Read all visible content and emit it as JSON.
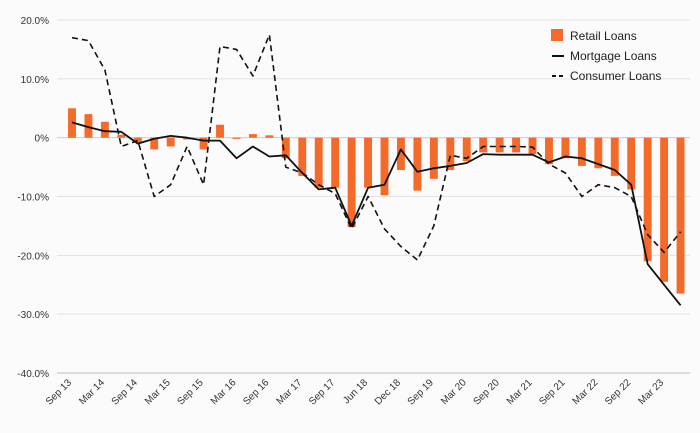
{
  "chart_data": {
    "type": "bar+line",
    "x_tick_labels": [
      "Sep 13",
      "Mar 14",
      "Sep 14",
      "Mar 15",
      "Sep 15",
      "Mar 16",
      "Sep 16",
      "Mar 17",
      "Sep 17",
      "Jun 18",
      "Dec 18",
      "Sep 19",
      "Mar 20",
      "Sep 20",
      "Mar 21",
      "Sep 21",
      "Mar 22",
      "Sep 22",
      "Mar 23"
    ],
    "y_tick_labels": [
      "20.0%",
      "10.0%",
      "0%",
      "-10.0%",
      "-20.0%",
      "-30.0%",
      "-40.0%"
    ],
    "y_ticks": [
      20,
      10,
      0,
      -10,
      -20,
      -30,
      -40
    ],
    "ylim": [
      -40,
      20
    ],
    "grid": "horizontal",
    "legend_position": "top-right",
    "colors": {
      "retail": "#f36a2a",
      "mortgage": "#111111",
      "consumer": "#111111",
      "grid": "#e2e2e2"
    },
    "series": [
      {
        "name": "Retail Loans",
        "kind": "bar",
        "values": [
          5.0,
          4.0,
          2.7,
          0.5,
          -0.8,
          -2.0,
          -1.5,
          -0.3,
          -2.0,
          2.2,
          -0.2,
          0.6,
          0.4,
          -3.5,
          -6.5,
          -8.5,
          -8.5,
          -15.2,
          -8.5,
          -9.8,
          -5.5,
          -9.0,
          -7.0,
          -5.5,
          -4.0,
          -2.5,
          -2.5,
          -2.5,
          -2.8,
          -4.5,
          -3.5,
          -4.8,
          -5.2,
          -6.5,
          -8.8,
          -21.0,
          -24.5,
          -26.5
        ]
      },
      {
        "name": "Mortgage Loans",
        "kind": "line",
        "style": "solid",
        "values": [
          2.6,
          1.8,
          1.1,
          1.0,
          -1.0,
          -0.2,
          0.3,
          0.0,
          -0.5,
          -0.5,
          -3.5,
          -1.5,
          -3.2,
          -3.0,
          -6.0,
          -8.8,
          -8.5,
          -15.0,
          -8.5,
          -8.0,
          -2.0,
          -5.8,
          -5.2,
          -4.8,
          -4.3,
          -2.8,
          -2.9,
          -2.9,
          -2.9,
          -4.2,
          -3.2,
          -3.5,
          -4.5,
          -5.5,
          -8.0,
          -21.5,
          -25.0,
          -28.5
        ]
      },
      {
        "name": "Consumer Loans",
        "kind": "line",
        "style": "dashed",
        "values": [
          17.0,
          16.5,
          11.5,
          -1.5,
          -0.5,
          -10.0,
          -8.0,
          -1.5,
          -8.0,
          15.5,
          15.0,
          10.5,
          17.5,
          -5.0,
          -6.0,
          -8.0,
          -9.5,
          -15.5,
          -10.0,
          -15.5,
          -18.5,
          -20.8,
          -15.0,
          -3.0,
          -3.5,
          -1.5,
          -1.5,
          -1.5,
          -1.6,
          -4.5,
          -6.0,
          -10.0,
          -8.0,
          -8.5,
          -10.0,
          -16.5,
          -19.5,
          -16.0
        ]
      }
    ]
  }
}
